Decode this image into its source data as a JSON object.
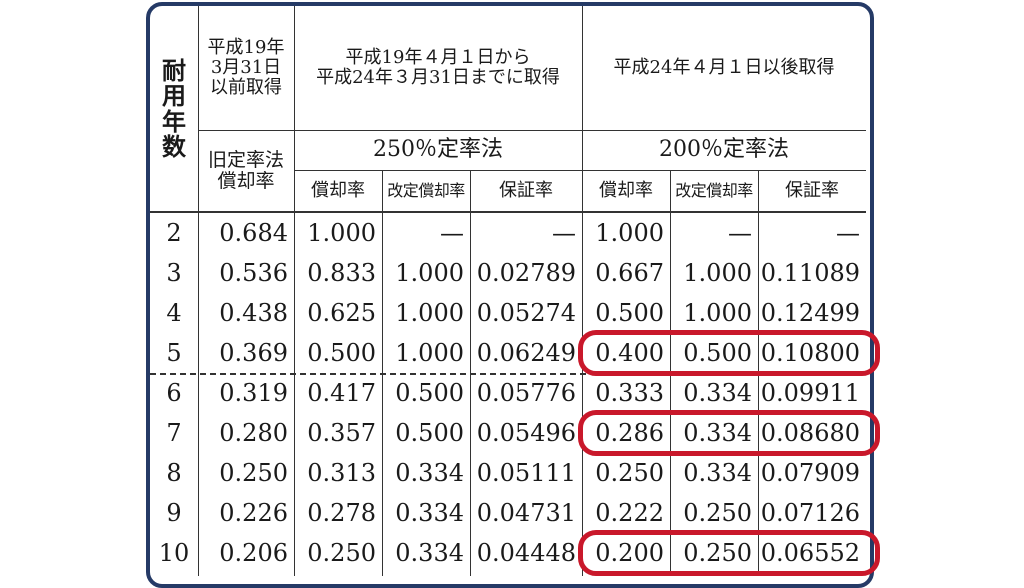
{
  "header": {
    "col_years": "耐用年数",
    "col_old_period": "平成19年\n3月31日\n以前取得",
    "col_mid_period": "平成19年４月１日から\n平成24年３月31日までに取得",
    "col_new_period": "平成24年４月１日以後取得",
    "old_method": "旧定率法\n償却率",
    "mid_method": "250％定率法",
    "new_method": "200％定率法",
    "sub_rate": "償却率",
    "sub_revised_rate": "改定償却率",
    "sub_guarantee": "保証率"
  },
  "rows": [
    {
      "year": "2",
      "old": "0.684",
      "m_rate": "1.000",
      "m_rev": "—",
      "m_guar": "—",
      "n_rate": "1.000",
      "n_rev": "—",
      "n_guar": "—"
    },
    {
      "year": "3",
      "old": "0.536",
      "m_rate": "0.833",
      "m_rev": "1.000",
      "m_guar": "0.02789",
      "n_rate": "0.667",
      "n_rev": "1.000",
      "n_guar": "0.11089"
    },
    {
      "year": "4",
      "old": "0.438",
      "m_rate": "0.625",
      "m_rev": "1.000",
      "m_guar": "0.05274",
      "n_rate": "0.500",
      "n_rev": "1.000",
      "n_guar": "0.12499"
    },
    {
      "year": "5",
      "old": "0.369",
      "m_rate": "0.500",
      "m_rev": "1.000",
      "m_guar": "0.06249",
      "n_rate": "0.400",
      "n_rev": "0.500",
      "n_guar": "0.10800"
    },
    {
      "year": "6",
      "old": "0.319",
      "m_rate": "0.417",
      "m_rev": "0.500",
      "m_guar": "0.05776",
      "n_rate": "0.333",
      "n_rev": "0.334",
      "n_guar": "0.09911"
    },
    {
      "year": "7",
      "old": "0.280",
      "m_rate": "0.357",
      "m_rev": "0.500",
      "m_guar": "0.05496",
      "n_rate": "0.286",
      "n_rev": "0.334",
      "n_guar": "0.08680"
    },
    {
      "year": "8",
      "old": "0.250",
      "m_rate": "0.313",
      "m_rev": "0.334",
      "m_guar": "0.05111",
      "n_rate": "0.250",
      "n_rev": "0.334",
      "n_guar": "0.07909"
    },
    {
      "year": "9",
      "old": "0.226",
      "m_rate": "0.278",
      "m_rev": "0.334",
      "m_guar": "0.04731",
      "n_rate": "0.222",
      "n_rev": "0.250",
      "n_guar": "0.07126"
    },
    {
      "year": "10",
      "old": "0.206",
      "m_rate": "0.250",
      "m_rev": "0.334",
      "m_guar": "0.04448",
      "n_rate": "0.200",
      "n_rev": "0.250",
      "n_guar": "0.06552"
    }
  ],
  "highlighted_years": [
    "5",
    "7",
    "10"
  ],
  "colors": {
    "frame": "#253a66",
    "highlight": "#c9182b"
  }
}
